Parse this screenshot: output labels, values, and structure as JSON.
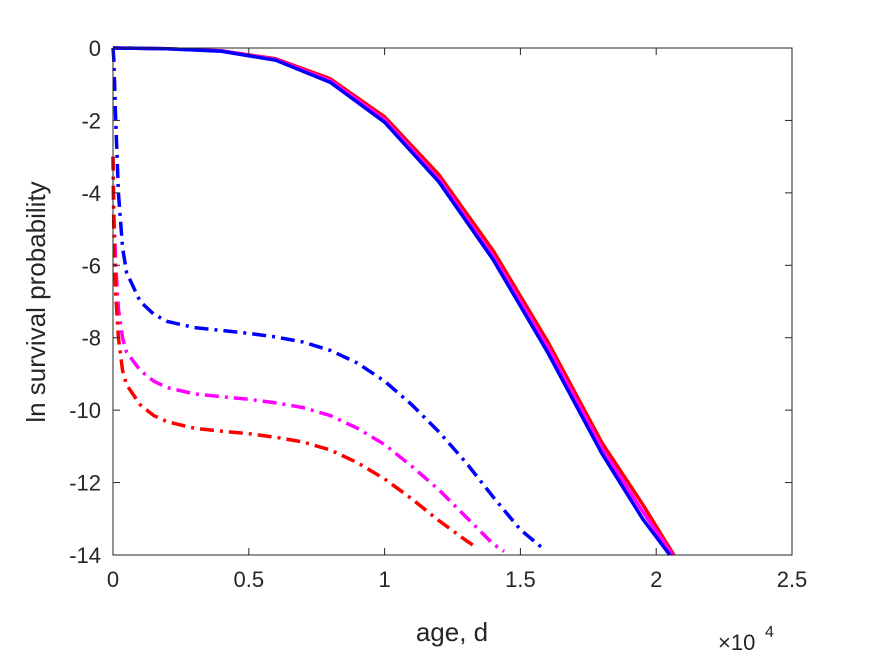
{
  "chart_data": {
    "type": "line",
    "xlabel": "age, d",
    "ylabel": "ln survival probability",
    "x_exponent_base": "×10",
    "x_exponent_power": "4",
    "xlim": [
      0,
      25000
    ],
    "ylim": [
      -14,
      0
    ],
    "xticks": [
      0,
      5000,
      10000,
      15000,
      20000,
      25000
    ],
    "xtick_labels": [
      "0",
      "0.5",
      "1",
      "1.5",
      "2",
      "2.5"
    ],
    "yticks": [
      0,
      -2,
      -4,
      -6,
      -8,
      -10,
      -12,
      -14
    ],
    "ytick_labels": [
      "0",
      "-2",
      "-4",
      "-6",
      "-8",
      "-10",
      "-12",
      "-14"
    ],
    "grid": false,
    "legend": "none",
    "series": [
      {
        "color": "#ff0000",
        "style": "solid",
        "x": [
          0,
          2000,
          4000,
          6000,
          8000,
          10000,
          12000,
          14000,
          16000,
          18000,
          19500,
          20650
        ],
        "y": [
          0,
          -0.02,
          -0.08,
          -0.3,
          -0.85,
          -1.9,
          -3.5,
          -5.6,
          -8.1,
          -10.9,
          -12.6,
          -14
        ]
      },
      {
        "color": "#ff00ff",
        "style": "solid",
        "x": [
          0,
          2000,
          4000,
          6000,
          8000,
          10000,
          12000,
          14000,
          16000,
          18000,
          19500,
          20600
        ],
        "y": [
          0,
          -0.02,
          -0.08,
          -0.32,
          -0.9,
          -1.98,
          -3.62,
          -5.75,
          -8.25,
          -11.05,
          -12.8,
          -14
        ]
      },
      {
        "color": "#0000ff",
        "style": "solid",
        "x": [
          0,
          2000,
          4000,
          6000,
          8000,
          10000,
          12000,
          14000,
          16000,
          18000,
          19500,
          20500
        ],
        "y": [
          0,
          -0.02,
          -0.09,
          -0.34,
          -0.95,
          -2.05,
          -3.7,
          -5.85,
          -8.4,
          -11.2,
          -13.0,
          -14
        ]
      },
      {
        "color": "#0000ff",
        "style": "dashdot",
        "x": [
          0,
          30,
          100,
          200,
          350,
          500,
          1000,
          1500,
          2000,
          3000,
          4000,
          5000,
          6000,
          7000,
          8000,
          9000,
          10000,
          11000,
          12000,
          13000,
          14000,
          15000,
          15800
        ],
        "y": [
          0,
          -0.3,
          -2.0,
          -4.0,
          -5.5,
          -6.2,
          -7.0,
          -7.35,
          -7.55,
          -7.72,
          -7.8,
          -7.88,
          -7.98,
          -8.12,
          -8.35,
          -8.7,
          -9.2,
          -9.85,
          -10.6,
          -11.45,
          -12.4,
          -13.3,
          -13.8
        ]
      },
      {
        "color": "#ff00ff",
        "style": "dashdot",
        "x": [
          0,
          30,
          100,
          200,
          350,
          500,
          1000,
          1500,
          2000,
          3000,
          4000,
          5000,
          6000,
          7000,
          8000,
          9000,
          10000,
          11000,
          12000,
          13000,
          14000,
          14400
        ],
        "y": [
          -3.0,
          -4.5,
          -6.0,
          -7.2,
          -8.0,
          -8.4,
          -8.9,
          -9.2,
          -9.38,
          -9.55,
          -9.63,
          -9.7,
          -9.8,
          -9.93,
          -10.15,
          -10.5,
          -10.95,
          -11.55,
          -12.2,
          -12.95,
          -13.7,
          -13.9
        ]
      },
      {
        "color": "#ff0000",
        "style": "dashdot",
        "x": [
          0,
          30,
          100,
          200,
          350,
          500,
          1000,
          1500,
          2000,
          3000,
          4000,
          5000,
          6000,
          7000,
          8000,
          9000,
          10000,
          11000,
          12000,
          13000,
          13400
        ],
        "y": [
          -3.0,
          -5.0,
          -6.8,
          -8.0,
          -8.9,
          -9.3,
          -9.85,
          -10.15,
          -10.32,
          -10.5,
          -10.58,
          -10.65,
          -10.75,
          -10.88,
          -11.1,
          -11.45,
          -11.9,
          -12.45,
          -13.05,
          -13.6,
          -13.8
        ]
      }
    ]
  }
}
